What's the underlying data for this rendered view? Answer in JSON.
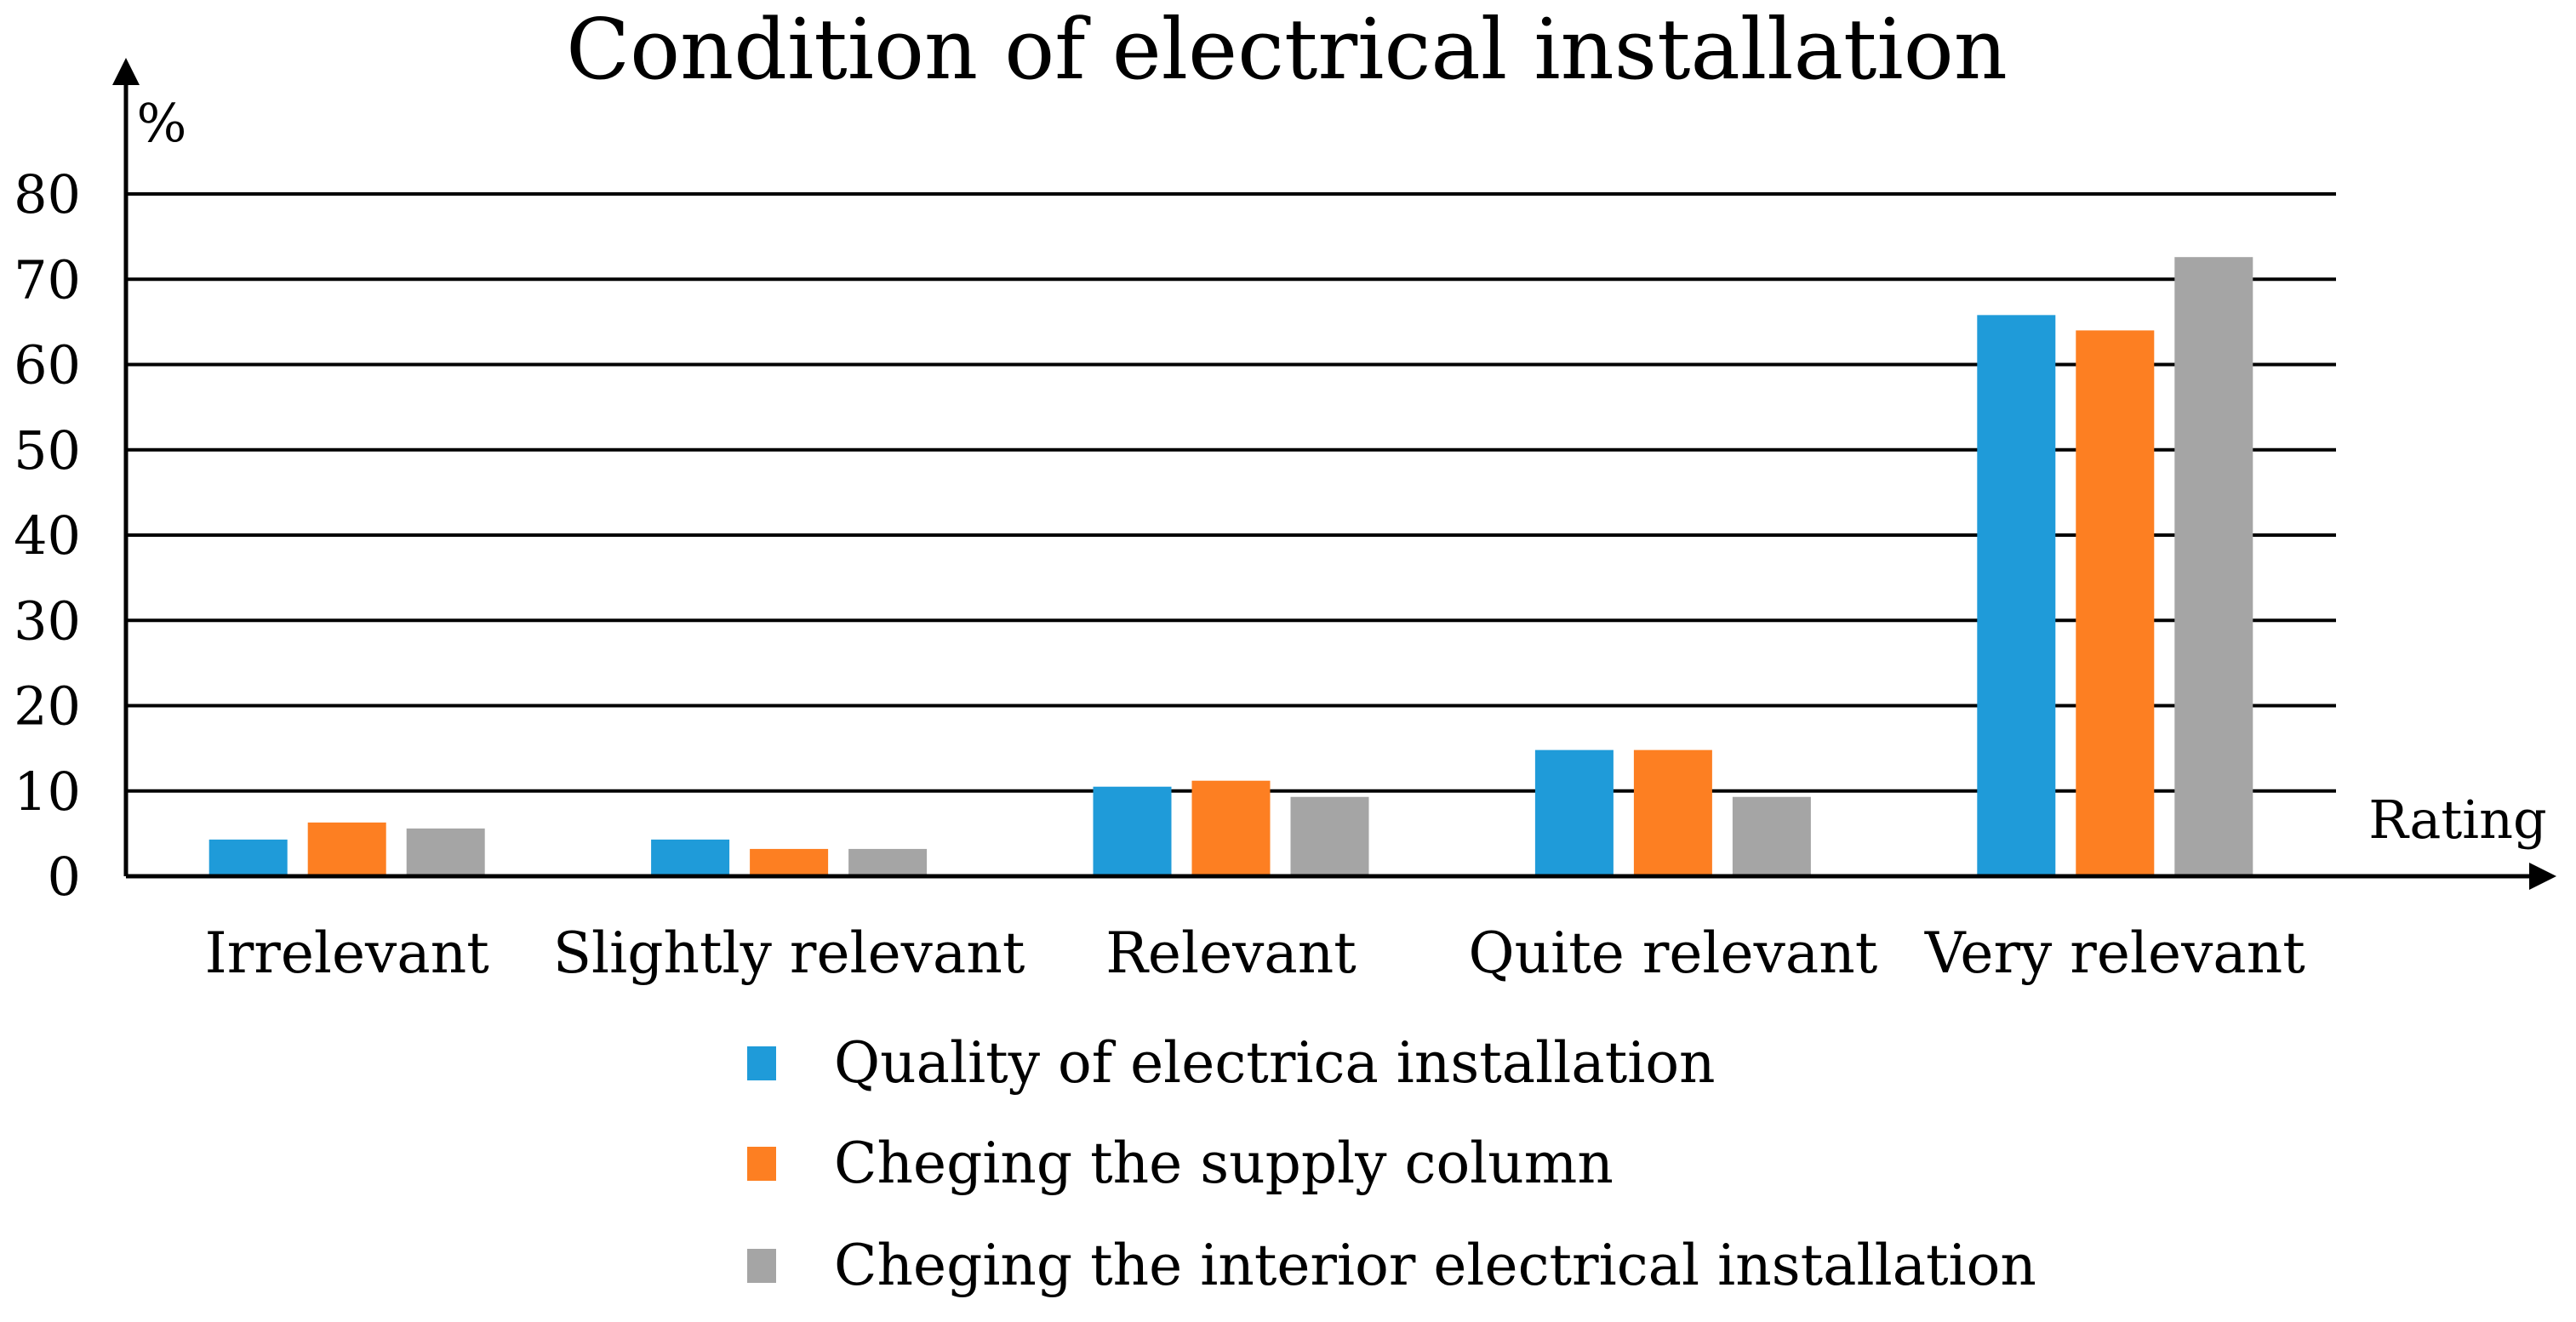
{
  "chart_data": {
    "type": "bar",
    "title": "Condition of electrical installation",
    "ylabel": "%",
    "xlabel": "Rating",
    "ylim": [
      0,
      80
    ],
    "yticks": [
      0,
      10,
      20,
      30,
      40,
      50,
      60,
      70,
      80
    ],
    "grid": true,
    "legend_position": "bottom",
    "categories": [
      "Irrelevant",
      "Slightly relevant",
      "Relevant",
      "Quite relevant",
      "Very relevant"
    ],
    "series": [
      {
        "name": "Quality of electrica installation",
        "color": "#1f9bd9",
        "values": [
          4.3,
          4.3,
          10.5,
          14.8,
          65.8
        ]
      },
      {
        "name": "Cheging the supply column",
        "color": "#fd7f22",
        "values": [
          6.3,
          3.2,
          11.2,
          14.8,
          64.0
        ]
      },
      {
        "name": "Cheging the interior electrical installation",
        "color": "#a5a5a5",
        "values": [
          5.6,
          3.2,
          9.3,
          9.3,
          72.6
        ]
      }
    ]
  }
}
